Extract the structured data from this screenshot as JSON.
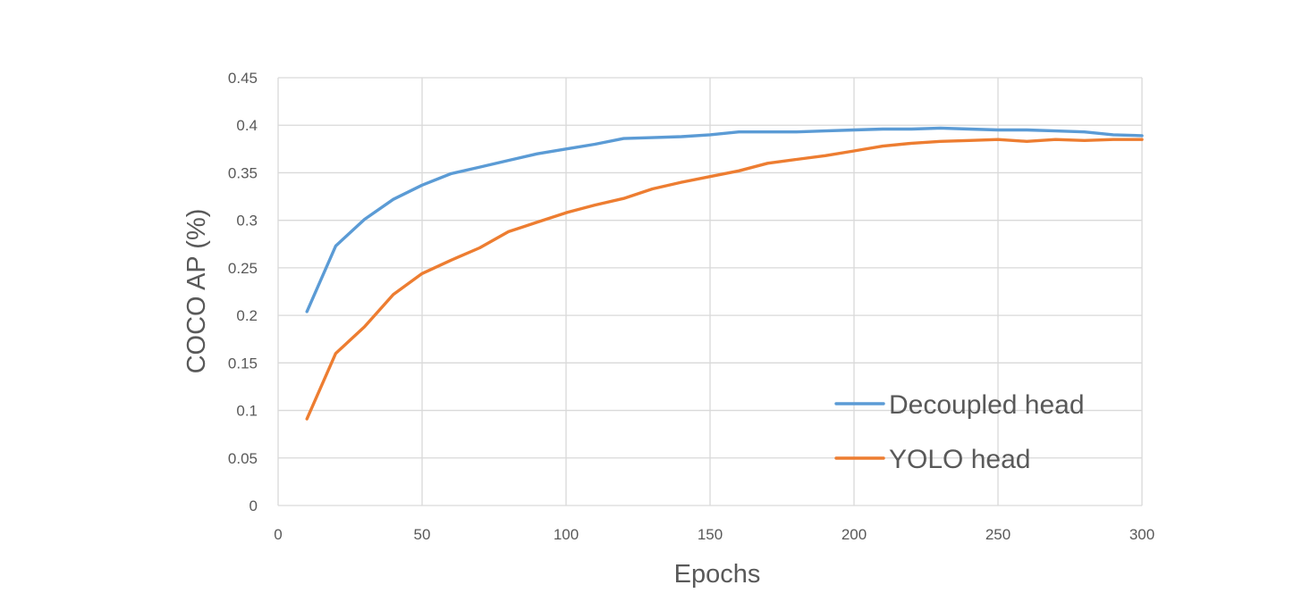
{
  "chart_data": {
    "type": "line",
    "title": "",
    "xlabel": "Epochs",
    "ylabel": "COCO AP (%)",
    "xlim": [
      0,
      300
    ],
    "ylim": [
      0,
      0.45
    ],
    "x_ticks": [
      "0",
      "50",
      "100",
      "150",
      "200",
      "250",
      "300"
    ],
    "y_ticks": [
      "0",
      "0.05",
      "0.1",
      "0.15",
      "0.2",
      "0.25",
      "0.3",
      "0.35",
      "0.4",
      "0.45"
    ],
    "grid": true,
    "legend_position": "bottom-right",
    "x": [
      10,
      20,
      30,
      40,
      50,
      60,
      70,
      80,
      90,
      100,
      110,
      120,
      130,
      140,
      150,
      160,
      170,
      180,
      190,
      200,
      210,
      220,
      230,
      240,
      250,
      260,
      270,
      280,
      290,
      300
    ],
    "series": [
      {
        "name": "Decoupled head",
        "color": "#5b9bd5",
        "values": [
          0.204,
          0.273,
          0.301,
          0.322,
          0.337,
          0.349,
          0.356,
          0.363,
          0.37,
          0.375,
          0.38,
          0.386,
          0.387,
          0.388,
          0.39,
          0.393,
          0.393,
          0.393,
          0.394,
          0.395,
          0.396,
          0.396,
          0.397,
          0.396,
          0.395,
          0.395,
          0.394,
          0.393,
          0.39,
          0.389
        ]
      },
      {
        "name": "YOLO head",
        "color": "#ed7d31",
        "values": [
          0.091,
          0.16,
          0.188,
          0.222,
          0.244,
          0.258,
          0.271,
          0.288,
          0.298,
          0.308,
          0.316,
          0.323,
          0.333,
          0.34,
          0.346,
          0.352,
          0.36,
          0.364,
          0.368,
          0.373,
          0.378,
          0.381,
          0.383,
          0.384,
          0.385,
          0.383,
          0.385,
          0.384,
          0.385,
          0.385
        ]
      }
    ]
  }
}
